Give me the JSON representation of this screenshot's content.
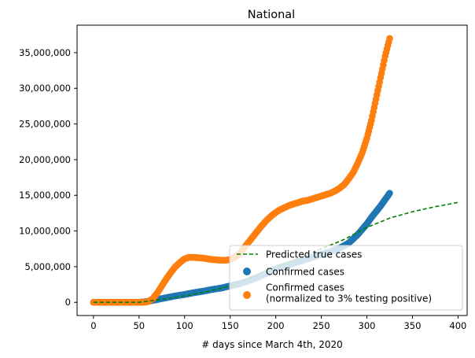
{
  "chart_data": {
    "type": "scatter",
    "title": "National",
    "xlabel": "# days since March 4th, 2020",
    "ylabel": "",
    "xlim": [
      -18,
      410
    ],
    "ylim": [
      -1850000,
      38850000
    ],
    "x_ticks": [
      0,
      50,
      100,
      150,
      200,
      250,
      300,
      350,
      400
    ],
    "y_ticks": [
      0,
      5000000,
      10000000,
      15000000,
      20000000,
      25000000,
      30000000,
      35000000
    ],
    "y_tick_labels": [
      "0",
      "5,000,000",
      "10,000,000",
      "15,000,000",
      "20,000,000",
      "25,000,000",
      "30,000,000",
      "35,000,000"
    ],
    "grid": false,
    "legend": {
      "position": "lower-right",
      "entries": [
        "Predicted true cases",
        "Confirmed cases",
        "Confirmed cases\n(normalized to 3% testing positive)"
      ]
    },
    "series": [
      {
        "name": "Predicted true cases",
        "kind": "line",
        "style": "dashed",
        "color": "#008000",
        "x": [
          0,
          25,
          50,
          75,
          100,
          125,
          150,
          175,
          200,
          225,
          250,
          275,
          300,
          325,
          350,
          375,
          400
        ],
        "y": [
          0,
          0,
          0,
          400000,
          900000,
          1500000,
          2300000,
          3600000,
          4900000,
          6200000,
          7500000,
          8800000,
          10500000,
          11800000,
          12700000,
          13400000,
          14000000
        ]
      },
      {
        "name": "Confirmed cases",
        "kind": "scatter",
        "color": "#1f77b4",
        "x": [
          0,
          10,
          20,
          30,
          40,
          50,
          55,
          60,
          70,
          80,
          90,
          100,
          110,
          120,
          130,
          140,
          150,
          160,
          170,
          180,
          190,
          200,
          210,
          220,
          230,
          240,
          250,
          260,
          270,
          280,
          290,
          300,
          305,
          310,
          315,
          320,
          325
        ],
        "y": [
          0,
          0,
          0,
          0,
          0,
          0,
          50000,
          150000,
          400000,
          650000,
          900000,
          1100000,
          1350000,
          1550000,
          1800000,
          2000000,
          2300000,
          2600000,
          3000000,
          3500000,
          4100000,
          4700000,
          5100000,
          5500000,
          5900000,
          6300000,
          6700000,
          7100000,
          7600000,
          8300000,
          9500000,
          11000000,
          11900000,
          12700000,
          13500000,
          14400000,
          15300000
        ]
      },
      {
        "name": "Confirmed cases\n(normalized to 3% testing positive)",
        "kind": "scatter",
        "color": "#ff7f0e",
        "x": [
          0,
          10,
          20,
          30,
          40,
          50,
          55,
          60,
          65,
          70,
          75,
          80,
          85,
          90,
          95,
          100,
          105,
          110,
          115,
          120,
          125,
          130,
          135,
          140,
          145,
          150,
          155,
          160,
          165,
          170,
          175,
          180,
          185,
          190,
          195,
          200,
          205,
          210,
          215,
          220,
          225,
          230,
          235,
          240,
          245,
          250,
          255,
          260,
          265,
          270,
          275,
          280,
          285,
          290,
          295,
          300,
          305,
          310,
          315,
          320,
          325
        ],
        "y": [
          0,
          0,
          0,
          0,
          0,
          0,
          0,
          100000,
          500000,
          1300000,
          2300000,
          3300000,
          4200000,
          5000000,
          5600000,
          6100000,
          6300000,
          6300000,
          6250000,
          6200000,
          6100000,
          6000000,
          5950000,
          5900000,
          5900000,
          6000000,
          6300000,
          6800000,
          7600000,
          8400000,
          9200000,
          10000000,
          10800000,
          11500000,
          12100000,
          12600000,
          13000000,
          13300000,
          13600000,
          13800000,
          14000000,
          14200000,
          14300000,
          14500000,
          14700000,
          14900000,
          15100000,
          15300000,
          15600000,
          16000000,
          16500000,
          17300000,
          18200000,
          19500000,
          21000000,
          23000000,
          25500000,
          28500000,
          31500000,
          34500000,
          37000000
        ]
      }
    ]
  }
}
